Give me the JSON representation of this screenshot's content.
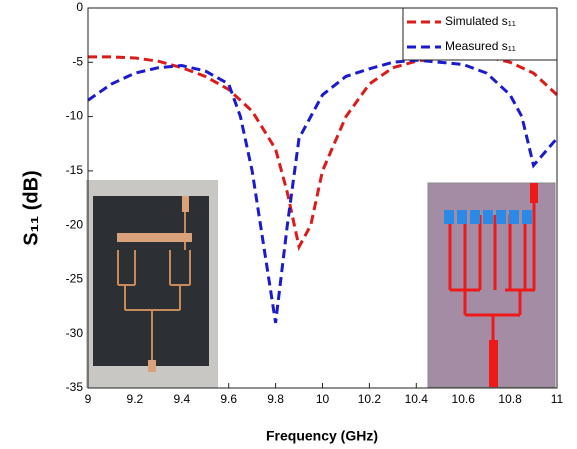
{
  "chart_data": {
    "type": "line",
    "x_label": "Frequency (GHz)",
    "y_label": "S₁₁ (dB)",
    "xlim": [
      9,
      11
    ],
    "xticks": [
      9,
      9.2,
      9.4,
      9.6,
      9.8,
      10,
      10.2,
      10.4,
      10.6,
      10.8,
      11
    ],
    "ylim": [
      -35,
      0
    ],
    "yticks": [
      0,
      -5,
      -10,
      -15,
      -20,
      -25,
      -30,
      -35
    ],
    "grid": false,
    "legend": "upper right",
    "series": [
      {
        "name": "Simulated s₁₁",
        "color": "#dd1a1a",
        "x": [
          9,
          9.1,
          9.2,
          9.3,
          9.4,
          9.5,
          9.6,
          9.7,
          9.8,
          9.85,
          9.9,
          9.95,
          10,
          10.1,
          10.2,
          10.3,
          10.4,
          10.5,
          10.6,
          10.7,
          10.8,
          10.9,
          11
        ],
        "values": [
          -4.5,
          -4.5,
          -4.6,
          -4.9,
          -5.5,
          -6.3,
          -7.5,
          -9.5,
          -13,
          -17,
          -22,
          -20,
          -15,
          -10,
          -7,
          -5.5,
          -4.9,
          -4.6,
          -4.5,
          -4.5,
          -5,
          -6,
          -8
        ]
      },
      {
        "name": "Measured s₁₁",
        "color": "#1a1ad0",
        "x": [
          9,
          9.1,
          9.2,
          9.3,
          9.4,
          9.5,
          9.6,
          9.65,
          9.7,
          9.75,
          9.8,
          9.85,
          9.9,
          10,
          10.1,
          10.2,
          10.3,
          10.4,
          10.5,
          10.6,
          10.7,
          10.8,
          10.85,
          10.9,
          11
        ],
        "values": [
          -8.5,
          -7,
          -6,
          -5.5,
          -5.3,
          -5.8,
          -7,
          -10,
          -15,
          -22,
          -29,
          -20,
          -12,
          -8,
          -6.3,
          -5.6,
          -5,
          -4.8,
          -5,
          -5.2,
          -6,
          -8,
          -10,
          -14.5,
          -12
        ]
      }
    ]
  }
}
